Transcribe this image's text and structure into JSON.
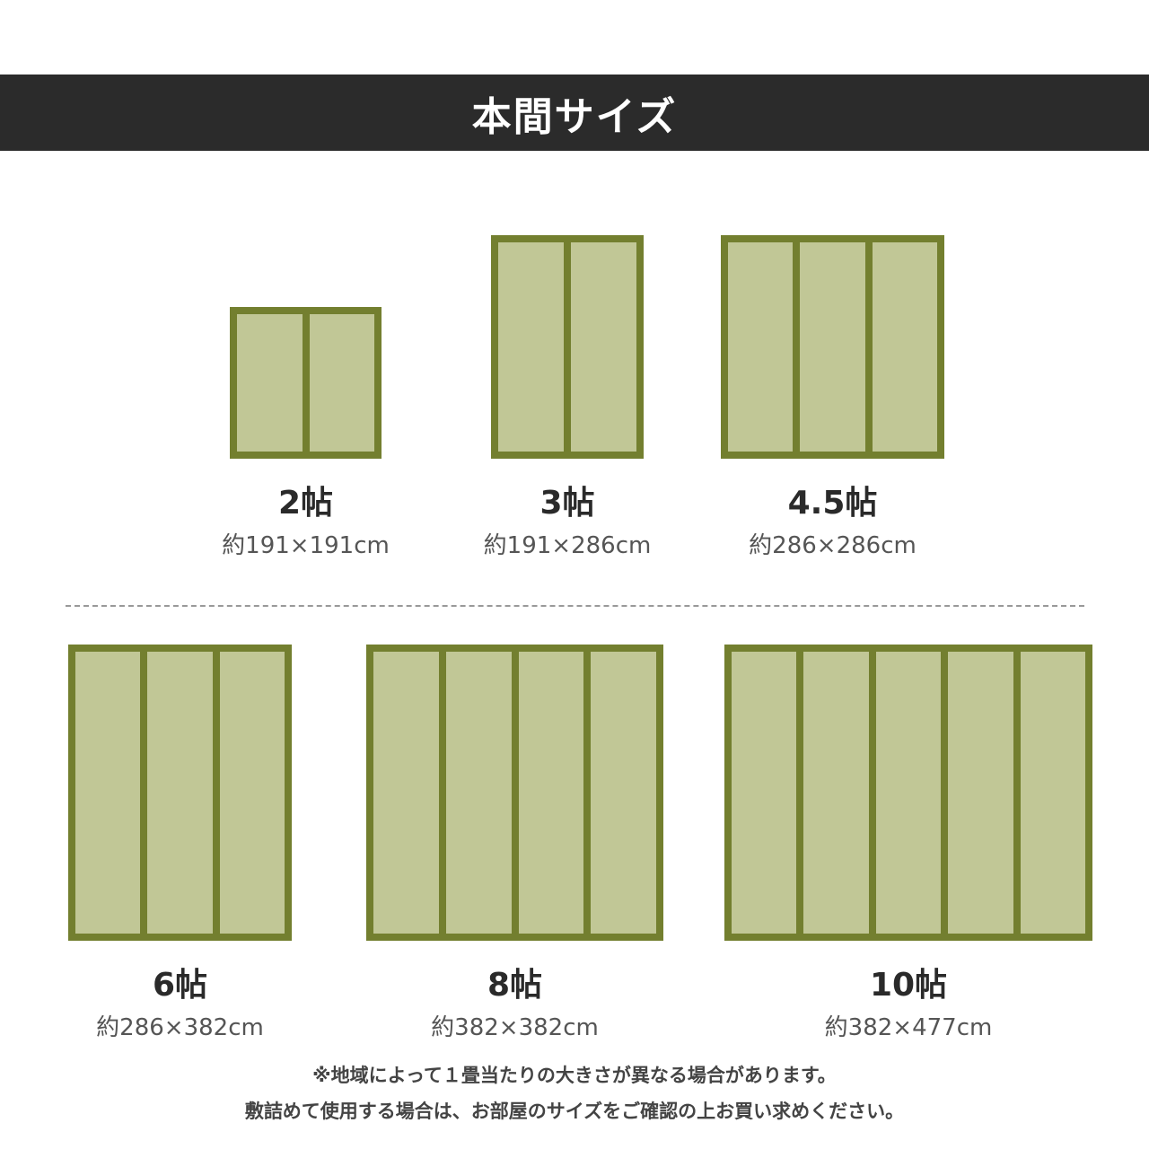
{
  "header": {
    "title": "本間サイズ"
  },
  "colors": {
    "frame": "#737f2f",
    "tatami": "#c1c796",
    "header_bg": "#2b2b2b"
  },
  "sizes": [
    {
      "name": "2帖",
      "dimensions": "約191×191cm",
      "panels": 2
    },
    {
      "name": "3帖",
      "dimensions": "約191×286cm",
      "panels": 2
    },
    {
      "name": "4.5帖",
      "dimensions": "約286×286cm",
      "panels": 3
    },
    {
      "name": "6帖",
      "dimensions": "約286×382cm",
      "panels": 3
    },
    {
      "name": "8帖",
      "dimensions": "約382×382cm",
      "panels": 4
    },
    {
      "name": "10帖",
      "dimensions": "約382×477cm",
      "panels": 5
    }
  ],
  "notes": [
    "※地域によって１畳当たりの大きさが異なる場合があります。",
    "敷詰めて使用する場合は、お部屋のサイズをご確認の上お買い求めください。"
  ]
}
